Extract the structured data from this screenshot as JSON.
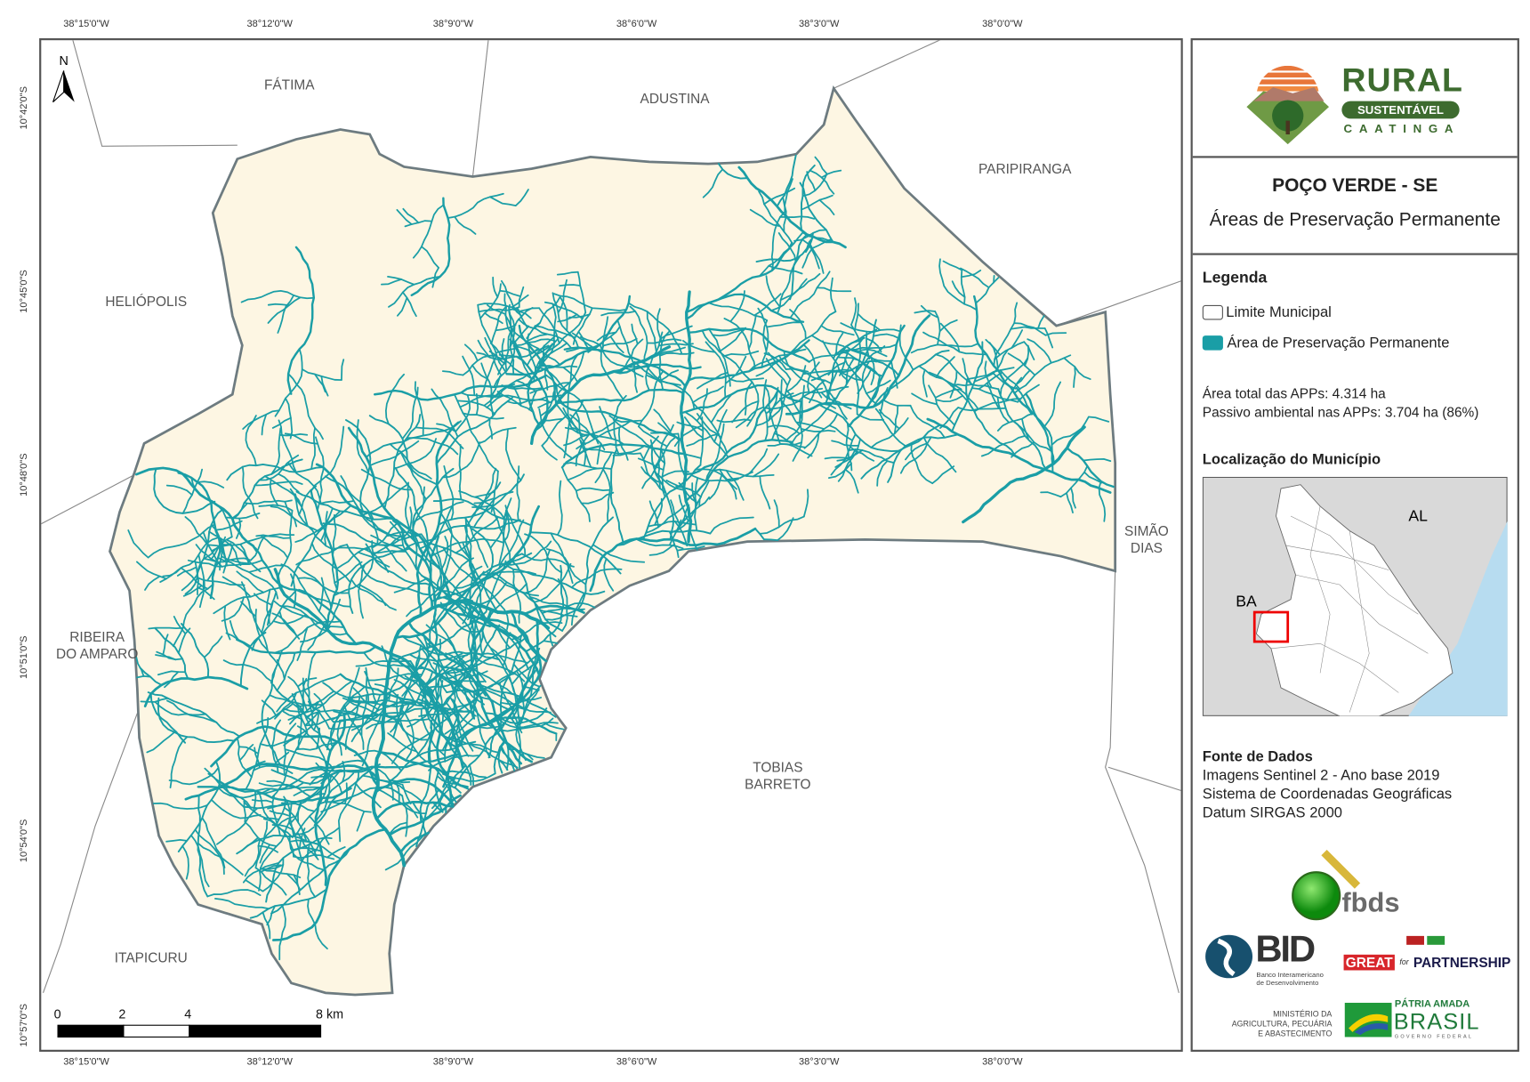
{
  "map": {
    "title": "POÇO VERDE - SE",
    "subtitle": "Áreas de Preservação Permanente",
    "colors": {
      "municipality_fill": "#fdf6e3",
      "app_rivers": "#1a9ea6",
      "boundary": "#666666",
      "neighbor_lines": "#888888",
      "ocean": "#b7dcf0",
      "inset_land": "#d9d9d9"
    },
    "graticule": {
      "longitudes": [
        "38°15'0\"W",
        "38°12'0\"W",
        "38°9'0\"W",
        "38°6'0\"W",
        "38°3'0\"W",
        "38°0'0\"W"
      ],
      "latitudes": [
        "10°42'0\"S",
        "10°45'0\"S",
        "10°48'0\"S",
        "10°51'0\"S",
        "10°54'0\"S",
        "10°57'0\"S"
      ]
    },
    "neighbors": [
      {
        "name": "FÁTIMA"
      },
      {
        "name": "ADUSTINA"
      },
      {
        "name": "PARIPIRANGA"
      },
      {
        "name": "HELIÓPOLIS"
      },
      {
        "name": "SIMÃO",
        "name2": "DIAS"
      },
      {
        "name": "RIBEIRA",
        "name2": "DO AMPARO"
      },
      {
        "name": "TOBIAS",
        "name2": "BARRETO"
      },
      {
        "name": "ITAPICURU"
      }
    ],
    "north_label": "N",
    "scale_bar": {
      "labels": [
        "0",
        "2",
        "4",
        "8 km"
      ]
    }
  },
  "panel": {
    "logo_rural": {
      "line1": "RURAL",
      "line2": "SUSTENTÁVEL",
      "line3": "CAATINGA"
    },
    "legend_title": "Legenda",
    "legend_items": [
      {
        "label": "Limite Municipal",
        "icon": "outline-swatch"
      },
      {
        "label": "Área de Preservação Permanente",
        "icon": "teal-swatch"
      }
    ],
    "stats": [
      "Área total das APPs: 4.314 ha",
      "Passivo ambiental nas APPs: 3.704 ha (86%)"
    ],
    "location_title": "Localização do Município",
    "inset_labels": [
      "AL",
      "BA"
    ],
    "sources_title": "Fonte de Dados",
    "sources": [
      "Imagens Sentinel 2 - Ano base 2019",
      "Sistema de Coordenadas Geográficas",
      "Datum SIRGAS 2000"
    ],
    "logos": {
      "fbds": "fbds",
      "bid": "BID",
      "bid_sub1": "Banco Interamericano",
      "bid_sub2": "de Desenvolvimento",
      "great": "GREAT",
      "for": "for",
      "partnership": "PARTNERSHIP",
      "ministerio": [
        "MINISTÉRIO DA",
        "AGRICULTURA, PECUÁRIA",
        "E ABASTECIMENTO"
      ],
      "patria": "PÁTRIA AMADA",
      "brasil": "BRASIL",
      "governo": "GOVERNO FEDERAL"
    }
  }
}
